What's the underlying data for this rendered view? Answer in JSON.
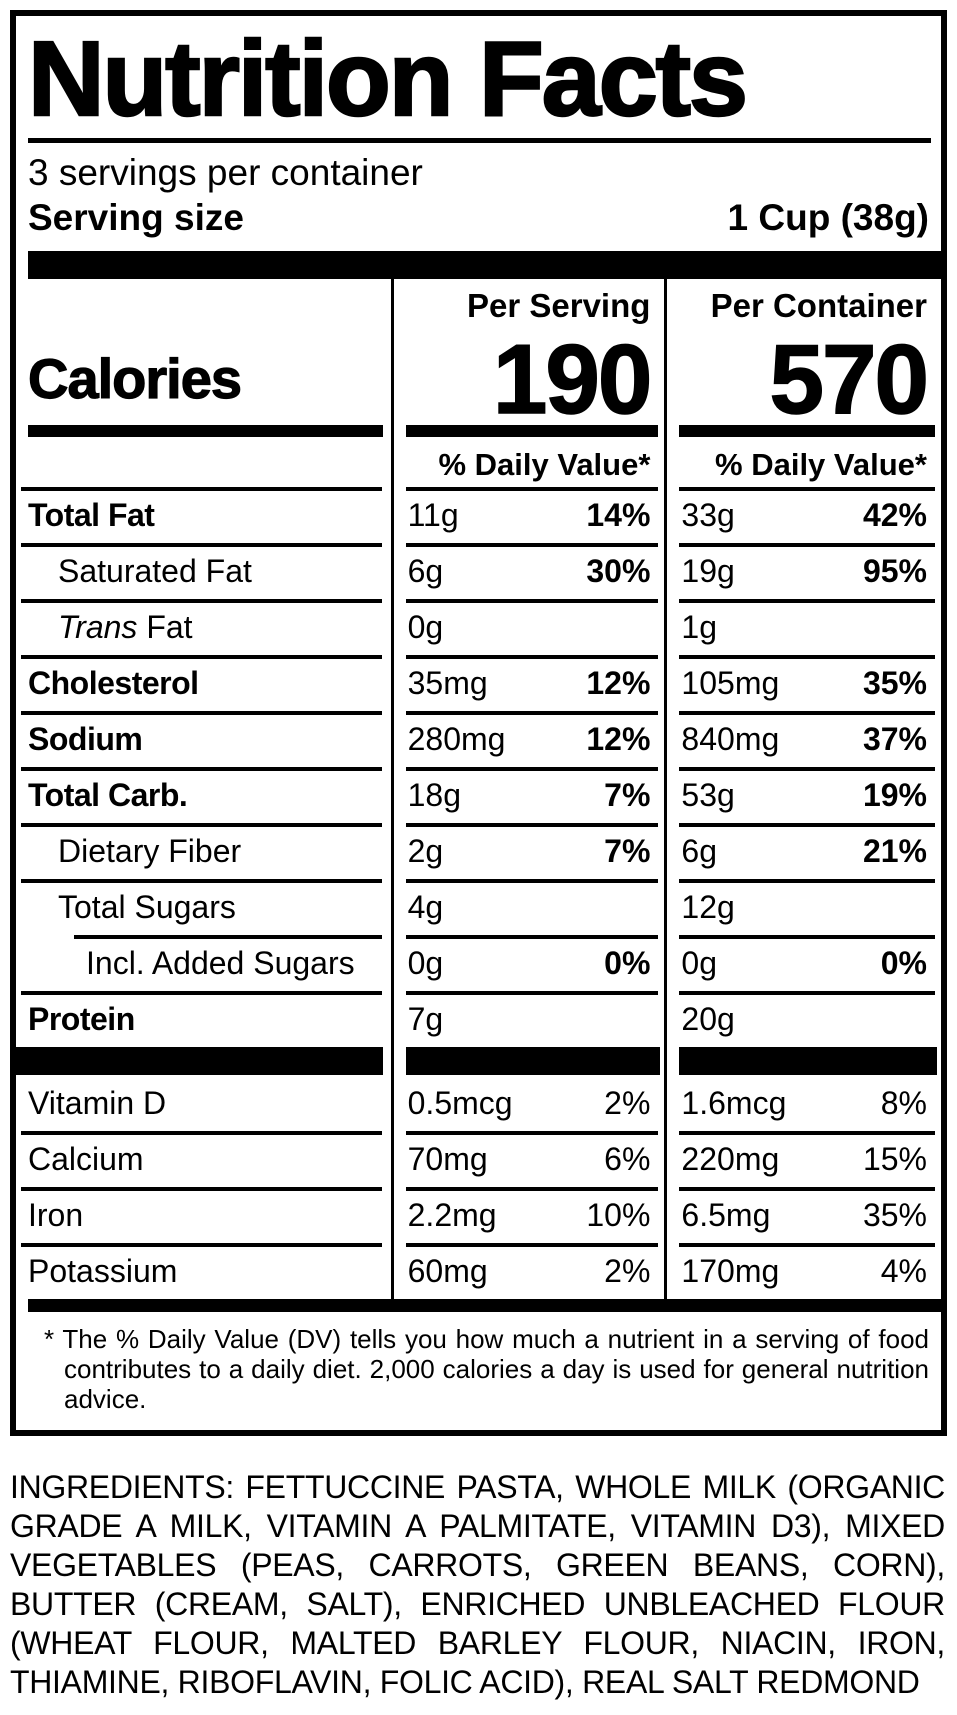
{
  "label": {
    "title": "Nutrition Facts",
    "servings_per_container": "3 servings per container",
    "serving_size_label": "Serving size",
    "serving_size_value": "1 Cup (38g)",
    "calories": {
      "label": "Calories",
      "per_serving_header": "Per Serving",
      "per_serving_value": "190",
      "per_container_header": "Per Container",
      "per_container_value": "570",
      "daily_value_header": "% Daily Value*"
    },
    "rows": [
      {
        "name": "Total Fat",
        "style": "bold",
        "indent": 0,
        "s_amt": "11g",
        "s_dv": "14%",
        "c_amt": "33g",
        "c_dv": "42%",
        "dv_bold": true
      },
      {
        "name": "Saturated Fat",
        "style": "regular",
        "indent": 1,
        "s_amt": "6g",
        "s_dv": "30%",
        "c_amt": "19g",
        "c_dv": "95%",
        "dv_bold": true
      },
      {
        "name_italic": "Trans",
        "name": " Fat",
        "style": "regular",
        "indent": 1,
        "s_amt": "0g",
        "s_dv": "",
        "c_amt": "1g",
        "c_dv": "",
        "dv_bold": false
      },
      {
        "name": "Cholesterol",
        "style": "bold",
        "indent": 0,
        "s_amt": "35mg",
        "s_dv": "12%",
        "c_amt": "105mg",
        "c_dv": "35%",
        "dv_bold": true
      },
      {
        "name": "Sodium",
        "style": "bold",
        "indent": 0,
        "s_amt": "280mg",
        "s_dv": "12%",
        "c_amt": "840mg",
        "c_dv": "37%",
        "dv_bold": true
      },
      {
        "name": "Total Carb.",
        "style": "bold",
        "indent": 0,
        "s_amt": "18g",
        "s_dv": "7%",
        "c_amt": "53g",
        "c_dv": "19%",
        "dv_bold": true
      },
      {
        "name": "Dietary Fiber",
        "style": "regular",
        "indent": 1,
        "s_amt": "2g",
        "s_dv": "7%",
        "c_amt": "6g",
        "c_dv": "21%",
        "dv_bold": true
      },
      {
        "name": "Total Sugars",
        "style": "regular",
        "indent": 1,
        "s_amt": "4g",
        "s_dv": "",
        "c_amt": "12g",
        "c_dv": "",
        "dv_bold": false
      },
      {
        "name": "Incl. Added Sugars",
        "style": "regular",
        "indent": 2,
        "sep_indent": true,
        "s_amt": "0g",
        "s_dv": "0%",
        "c_amt": "0g",
        "c_dv": "0%",
        "dv_bold": true
      },
      {
        "name": "Protein",
        "style": "bold",
        "indent": 0,
        "s_amt": "7g",
        "s_dv": "",
        "c_amt": "20g",
        "c_dv": "",
        "dv_bold": false
      }
    ],
    "vitamins": [
      {
        "name": "Vitamin D",
        "s_amt": "0.5mcg",
        "s_dv": "2%",
        "c_amt": "1.6mcg",
        "c_dv": "8%",
        "nosep": true
      },
      {
        "name": "Calcium",
        "s_amt": "70mg",
        "s_dv": "6%",
        "c_amt": "220mg",
        "c_dv": "15%"
      },
      {
        "name": "Iron",
        "s_amt": "2.2mg",
        "s_dv": "10%",
        "c_amt": "6.5mg",
        "c_dv": "35%"
      },
      {
        "name": "Potassium",
        "s_amt": "60mg",
        "s_dv": "2%",
        "c_amt": "170mg",
        "c_dv": "4%"
      }
    ],
    "footnote_marker": "*",
    "footnote": "The % Daily Value (DV) tells you how much a nutrient in a serving of food contributes to a daily diet. 2,000 calories a day is used for general nutrition advice."
  },
  "ingredients": "INGREDIENTS: FETTUCCINE PASTA, WHOLE MILK (ORGANIC GRADE A MILK, VITAMIN A PALMITATE, VITAMIN D3), MIXED VEGETABLES (PEAS, CARROTS, GREEN BEANS, CORN), BUTTER (CREAM, SALT), ENRICHED UNBLEACHED FLOUR (WHEAT FLOUR, MALTED BARLEY FLOUR, NIACIN, IRON, THIAMINE, RIBOFLAVIN, FOLIC ACID), REAL SALT REDMOND"
}
